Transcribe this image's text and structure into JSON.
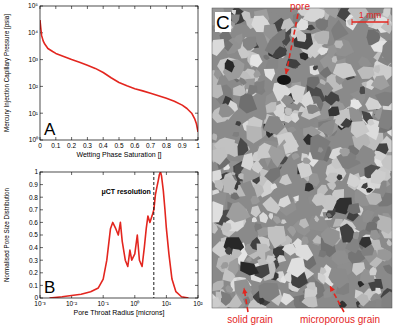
{
  "chart_data": [
    {
      "type": "line",
      "x_label": "Wetting Phase Saturation []",
      "y_label": "Mercury Injection Capillary Pressure [psia]",
      "annotations": [
        {
          "text": "A"
        }
      ],
      "x": [
        0,
        0.005,
        0.01,
        0.02,
        0.03,
        0.05,
        0.08,
        0.1,
        0.15,
        0.2,
        0.25,
        0.3,
        0.35,
        0.4,
        0.45,
        0.5,
        0.55,
        0.6,
        0.65,
        0.7,
        0.75,
        0.8,
        0.85,
        0.9,
        0.93,
        0.96,
        0.98,
        0.99,
        1
      ],
      "values": [
        30000,
        15000,
        8000,
        5000,
        3800,
        2600,
        2000,
        1700,
        1300,
        1000,
        800,
        620,
        470,
        330,
        210,
        140,
        105,
        82,
        68,
        56,
        45,
        36,
        28,
        20,
        15,
        10,
        6,
        4,
        2
      ],
      "color": "#e3261f",
      "log": "y",
      "xlim": [
        0,
        1
      ],
      "xticks": [
        0,
        0.1,
        0.2,
        0.3,
        0.4,
        0.5,
        0.6,
        0.7,
        0.8,
        0.9,
        1
      ],
      "ylim": [
        1,
        100000
      ],
      "yticks": [
        {
          "value": 1,
          "label": "10⁰"
        },
        {
          "value": 10,
          "label": "10¹"
        },
        {
          "value": 100,
          "label": "10²"
        },
        {
          "value": 1000,
          "label": "10³"
        },
        {
          "value": 10000,
          "label": "10⁴"
        },
        {
          "value": 100000,
          "label": "10⁵"
        }
      ],
      "grid": false
    },
    {
      "type": "line",
      "x_label": "Pore Throat Radius [microns]",
      "y_label": "Normalised Pore Size Distribution",
      "annotations": [
        {
          "text": "B"
        },
        {
          "text": "μCT resolution",
          "x": 4
        }
      ],
      "x": [
        0.002,
        0.005,
        0.01,
        0.02,
        0.04,
        0.07,
        0.1,
        0.13,
        0.17,
        0.2,
        0.25,
        0.3,
        0.35,
        0.4,
        0.5,
        0.6,
        0.7,
        0.8,
        1.0,
        1.2,
        1.4,
        1.7,
        2.0,
        2.3,
        2.6,
        3.0,
        3.5,
        4.0,
        4.5,
        5,
        5.5,
        6,
        6.5,
        7,
        8,
        9,
        10,
        12,
        15,
        20,
        30,
        50
      ],
      "values": [
        0,
        0.01,
        0.02,
        0.03,
        0.05,
        0.08,
        0.15,
        0.3,
        0.55,
        0.6,
        0.55,
        0.5,
        0.6,
        0.45,
        0.3,
        0.25,
        0.38,
        0.3,
        0.35,
        0.5,
        0.3,
        0.25,
        0.4,
        0.55,
        0.65,
        0.6,
        0.65,
        0.7,
        0.82,
        0.88,
        0.93,
        0.98,
        1.0,
        0.97,
        0.85,
        0.7,
        0.55,
        0.35,
        0.15,
        0.05,
        0.01,
        0
      ],
      "color": "#e3261f",
      "log": "x",
      "xlim": [
        0.001,
        100
      ],
      "xticks": [
        {
          "value": 0.001,
          "label": "10⁻³"
        },
        {
          "value": 0.01,
          "label": "10⁻²"
        },
        {
          "value": 0.1,
          "label": "10⁻¹"
        },
        {
          "value": 1,
          "label": "10⁰"
        },
        {
          "value": 10,
          "label": "10¹"
        },
        {
          "value": 100,
          "label": "10²"
        }
      ],
      "ylim": [
        0,
        1
      ],
      "yticks": [
        0,
        0.1,
        0.2,
        0.3,
        0.4,
        0.5,
        0.6,
        0.7,
        0.8,
        0.9,
        1
      ],
      "grid": false
    }
  ],
  "image": {
    "label": "C",
    "scale_bar": "1 mm",
    "annotations": [
      "pore",
      "solid grain",
      "microporous grain"
    ]
  }
}
